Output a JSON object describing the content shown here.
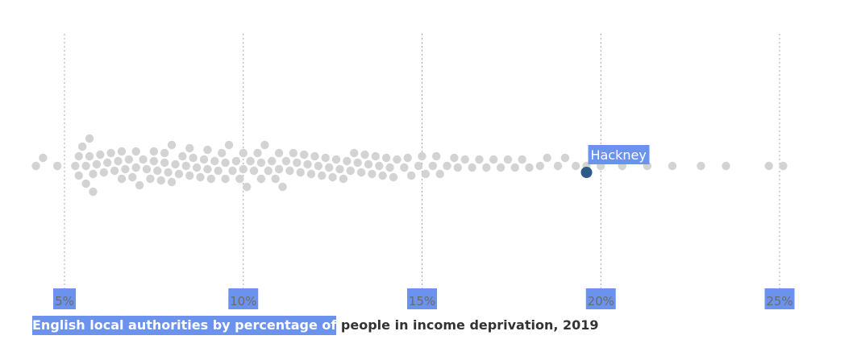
{
  "chart_data": {
    "type": "scatter",
    "subtype": "beeswarm",
    "title_part1": "English local authorities by percentage of",
    "title_part2": " people in income deprivation, 2019",
    "xlabel": "",
    "ylabel": "",
    "xlim": [
      3.9,
      26.0
    ],
    "xticks": [
      5,
      10,
      15,
      20,
      25
    ],
    "tick_labels": [
      "5%",
      "10%",
      "15%",
      "20%",
      "25%"
    ],
    "grid": "vertical dotted",
    "colors": {
      "point": "#d3d3d3",
      "highlight": "#2c5b8a",
      "label_bg": "#6b93ee",
      "gridline": "#a9a9a9"
    },
    "highlight": {
      "name": "Hackney",
      "value": 19.6
    },
    "values": [
      4.2,
      4.4,
      4.8,
      5.3,
      5.4,
      5.4,
      5.5,
      5.6,
      5.6,
      5.7,
      5.7,
      5.8,
      5.8,
      5.9,
      6.0,
      6.1,
      6.2,
      6.3,
      6.4,
      6.5,
      6.6,
      6.6,
      6.7,
      6.8,
      6.9,
      7.0,
      7.0,
      7.1,
      7.2,
      7.3,
      7.4,
      7.5,
      7.5,
      7.6,
      7.7,
      7.8,
      7.8,
      7.9,
      8.0,
      8.0,
      8.1,
      8.2,
      8.3,
      8.4,
      8.5,
      8.5,
      8.6,
      8.7,
      8.8,
      8.9,
      9.0,
      9.0,
      9.1,
      9.2,
      9.3,
      9.4,
      9.5,
      9.5,
      9.6,
      9.7,
      9.8,
      9.9,
      10.0,
      10.0,
      10.1,
      10.2,
      10.3,
      10.4,
      10.5,
      10.5,
      10.6,
      10.7,
      10.8,
      10.9,
      11.0,
      11.0,
      11.1,
      11.2,
      11.3,
      11.4,
      11.5,
      11.6,
      11.7,
      11.8,
      11.9,
      12.0,
      12.1,
      12.2,
      12.3,
      12.4,
      12.5,
      12.6,
      12.7,
      12.8,
      12.9,
      13.0,
      13.1,
      13.2,
      13.3,
      13.4,
      13.5,
      13.6,
      13.7,
      13.8,
      13.9,
      14.0,
      14.1,
      14.2,
      14.3,
      14.5,
      14.6,
      14.7,
      14.9,
      15.0,
      15.1,
      15.3,
      15.4,
      15.5,
      15.7,
      15.9,
      16.0,
      16.2,
      16.4,
      16.6,
      16.8,
      17.0,
      17.2,
      17.4,
      17.6,
      17.8,
      18.0,
      18.3,
      18.5,
      18.8,
      19.0,
      19.3,
      19.6,
      20.0,
      20.6,
      21.3,
      22.0,
      22.8,
      23.5,
      24.7,
      25.1
    ]
  }
}
